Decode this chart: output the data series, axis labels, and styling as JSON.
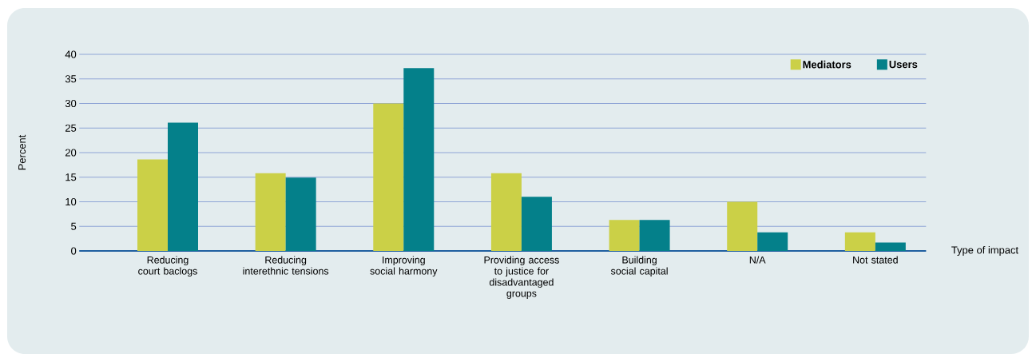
{
  "chart_data": {
    "type": "bar",
    "ylabel": "Percent",
    "xlabel": "Type of impact",
    "categories": [
      "Reducing court baclogs",
      "Reducing interethnic tensions",
      "Improving social harmony",
      "Providing access to justice for disadvantaged groups",
      "Building social capital",
      "N/A",
      "Not stated"
    ],
    "series": [
      {
        "name": "Mediators",
        "color": "#cbd047",
        "values": [
          18.6,
          15.8,
          30,
          15.8,
          6.3,
          10,
          3.8
        ]
      },
      {
        "name": "Users",
        "color": "#04808a",
        "values": [
          26.1,
          14.9,
          37.2,
          11,
          6.3,
          3.8,
          1.7
        ]
      }
    ],
    "ylim": [
      0,
      40
    ],
    "yticks": [
      0,
      5,
      10,
      15,
      20,
      25,
      30,
      35,
      40
    ],
    "grid": "y",
    "legend": "top right"
  }
}
